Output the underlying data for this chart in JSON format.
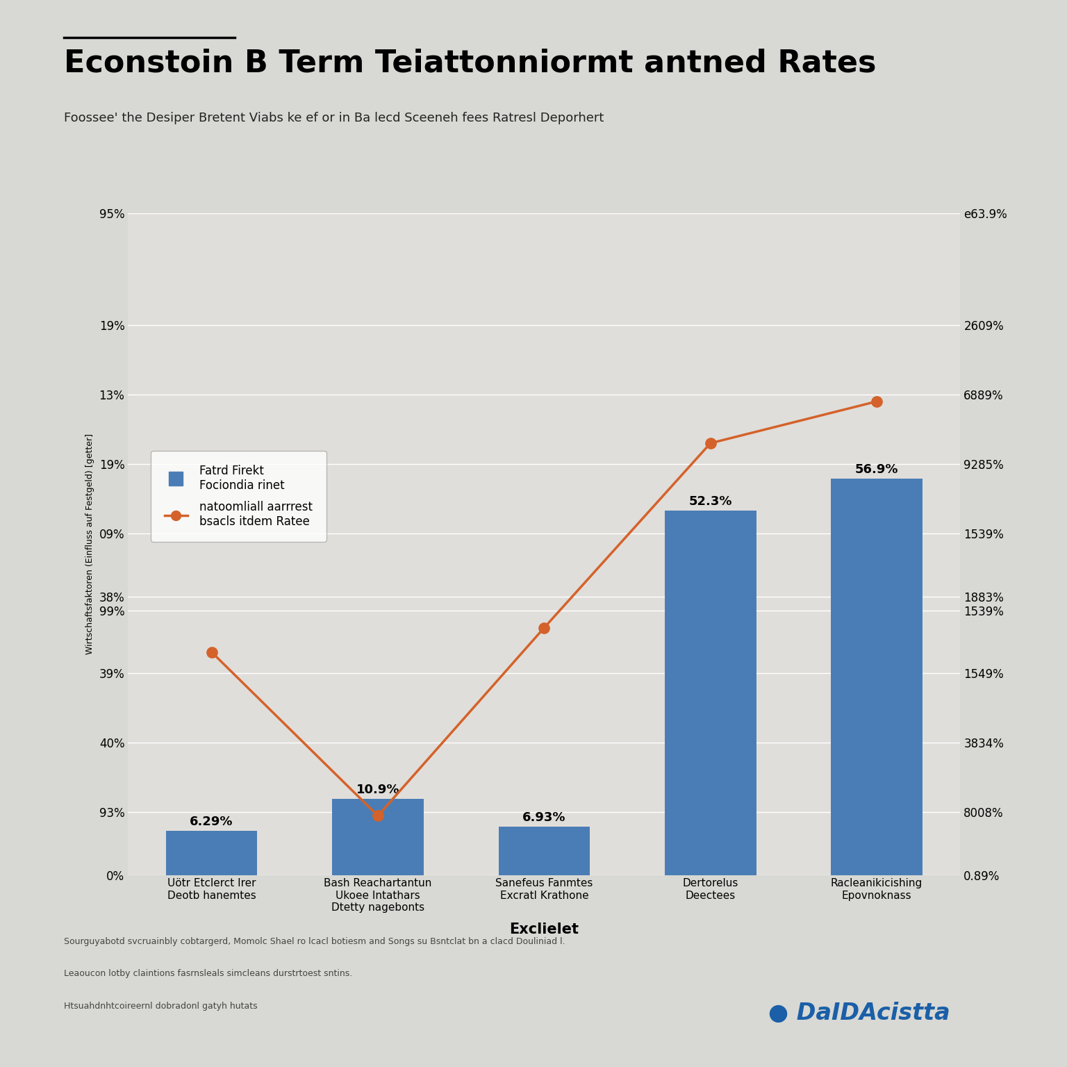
{
  "title": "Econstoin B Term Teiattonniormt antned Rates",
  "subtitle": "Foossee' the Desiper Bretent Viabs ke ef or in Ba lecd Sceeneh fees Ratresl Deporhert",
  "xlabel": "Exclielet",
  "ylabel_left": "Wirtschaftsfaktoren (Einfluss auf Festgeld) [getter]",
  "categories": [
    "Uötr Etclerct Irer\nDeotb hanemtes",
    "Bash Reachartantun\nUkoee Intathars\nDtetty nagebonts",
    "Sanefeus Fanmtes\nExcratl Krathone",
    "Dertorelus\nDeectees",
    "Racleanikicishing\nEpovnoknass"
  ],
  "bar_values": [
    6.29,
    10.9,
    6.93,
    52.3,
    56.9
  ],
  "bar_color": "#4a7db5",
  "line_values": [
    32.0,
    8.5,
    35.5,
    62.0,
    68.0
  ],
  "line_color": "#d4622a",
  "bar_labels": [
    "6.29%",
    "10.9%",
    "6.93%",
    "52.3%",
    "56.9%"
  ],
  "ylim_left": [
    0,
    95
  ],
  "yticks_left": [
    0,
    9,
    19,
    29,
    38,
    40,
    49,
    59,
    69,
    79,
    95
  ],
  "yticks_left_labels": [
    "0%",
    "93%",
    "40%",
    "39%",
    "99%",
    "38%",
    "09%",
    "19%",
    "13%",
    "19%",
    "95%"
  ],
  "yticks_right_positions": [
    0,
    9,
    19,
    29,
    38,
    40,
    49,
    59,
    69,
    79,
    95
  ],
  "yticks_right_labels": [
    "0.89%",
    "8008%",
    "3834%",
    "1549%",
    "1539%",
    "1883%",
    "1539%",
    "9285%",
    "6889%",
    "2609%",
    "e63.9%"
  ],
  "legend_labels": [
    "Fatrd Firekt\nFociondia rinet",
    "natoomliall aarrrest\nbsacls itdem Ratee"
  ],
  "background_color": "#d8d8d4",
  "plot_bg_color": "#e0deda",
  "source_text": "Sourguyabotd svcruainbly cobtargerd, Momolc Shael ro lcacl botiesm and Songs su Bsntclat bn a clacd Douliniad l.",
  "source_text2": "Leaoucon lotby claintions fasrnsleals simcleans durstrtoest sntins.",
  "source_text3": "Htsuahdnhtcoireernl dobradonl gatyh hutats",
  "watermark": "DaIDAcistta"
}
